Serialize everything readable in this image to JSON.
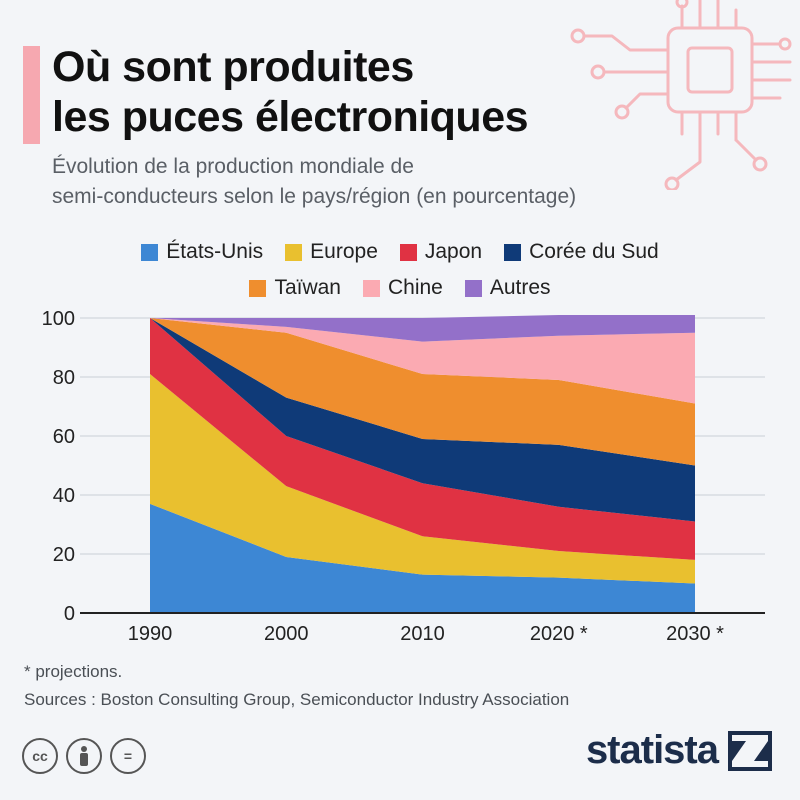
{
  "title": {
    "line1": "Où sont produites",
    "line2": "les puces électroniques"
  },
  "subtitle": {
    "line1": "Évolution de la production mondiale de",
    "line2": "semi-conducteurs selon le pays/région (en pourcentage)"
  },
  "colors": {
    "accent": "#f6a8b0",
    "etats_unis": "#3d87d4",
    "europe": "#e9c02f",
    "japon": "#e03243",
    "coree": "#0f3a78",
    "taiwan": "#ef8e2e",
    "chine": "#fbaab2",
    "autres": "#9370c9"
  },
  "legend": {
    "row1": [
      "États-Unis",
      "Europe",
      "Japon",
      "Corée du Sud"
    ],
    "row2": [
      "Taïwan",
      "Chine",
      "Autres"
    ]
  },
  "chart_data": {
    "type": "area",
    "stacked": true,
    "categories": [
      "1990",
      "2000",
      "2010",
      "2020 *",
      "2030 *"
    ],
    "series": [
      {
        "name": "États-Unis",
        "values": [
          37,
          19,
          13,
          12,
          10
        ]
      },
      {
        "name": "Europe",
        "values": [
          44,
          24,
          13,
          9,
          8
        ]
      },
      {
        "name": "Japon",
        "values": [
          19,
          17,
          18,
          15,
          13
        ]
      },
      {
        "name": "Corée du Sud",
        "values": [
          0,
          13,
          15,
          21,
          19
        ]
      },
      {
        "name": "Taïwan",
        "values": [
          0,
          22,
          22,
          22,
          21
        ]
      },
      {
        "name": "Chine",
        "values": [
          0,
          2,
          11,
          15,
          24
        ]
      },
      {
        "name": "Autres",
        "values": [
          0,
          3,
          8,
          7,
          6
        ]
      }
    ],
    "y_ticks": [
      "0",
      "20",
      "40",
      "60",
      "80",
      "100"
    ],
    "ylim": [
      0,
      100
    ],
    "grid": true
  },
  "footnote": "* projections.",
  "sources": "Sources : Boston Consulting Group, Semiconductor Industry Association",
  "license": {
    "cc": "cc",
    "by": "",
    "nd": "="
  },
  "brand": "statista"
}
